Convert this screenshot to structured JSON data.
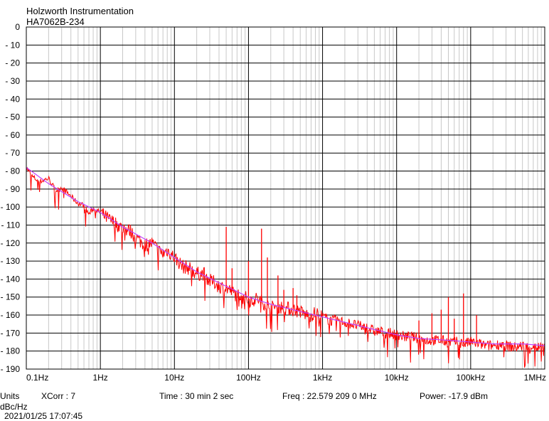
{
  "header": {
    "line1": "Holzworth Instrumentation",
    "line2": "HA7062B-234"
  },
  "footer": {
    "units_label": "Units",
    "units_value": "dBc/Hz",
    "xcorr": "XCorr : 7",
    "time": "Time : 30 min 2 sec",
    "freq": "Freq : 22.579 209 0 MHz",
    "power": "Power: -17.9 dBm",
    "timestamp": "2021/01/25 17:07:45"
  },
  "colors": {
    "measured": "#ff0000",
    "smoothed": "#c040ff",
    "grid": "#c8c8c8",
    "axes": "#000000"
  },
  "chart_data": {
    "type": "line",
    "x_scale": "log",
    "xlim": [
      0.1,
      1000000
    ],
    "ylim": [
      -190,
      0
    ],
    "yticks": [
      0,
      -10,
      -20,
      -30,
      -40,
      -50,
      -60,
      -70,
      -80,
      -90,
      -100,
      -110,
      -120,
      -130,
      -140,
      -150,
      -160,
      -170,
      -180,
      -190
    ],
    "xticks": [
      {
        "value": 0.1,
        "label": "0.1Hz"
      },
      {
        "value": 1,
        "label": "1Hz"
      },
      {
        "value": 10,
        "label": "10Hz"
      },
      {
        "value": 100,
        "label": "100Hz"
      },
      {
        "value": 1000,
        "label": "1kHz"
      },
      {
        "value": 10000,
        "label": "10kHz"
      },
      {
        "value": 100000,
        "label": "100kHz"
      },
      {
        "value": 1000000,
        "label": "1MHz"
      }
    ],
    "series": [
      {
        "kind": "measured",
        "points": [
          [
            0.1,
            -78
          ],
          [
            0.12,
            -83
          ],
          [
            0.15,
            -86
          ],
          [
            0.2,
            -84
          ],
          [
            0.25,
            -91
          ],
          [
            0.3,
            -89
          ],
          [
            0.4,
            -94
          ],
          [
            0.5,
            -98
          ],
          [
            0.6,
            -99
          ],
          [
            0.7,
            -104
          ],
          [
            0.8,
            -101
          ],
          [
            1,
            -103
          ],
          [
            1.3,
            -107
          ],
          [
            1.6,
            -109
          ],
          [
            2,
            -112
          ],
          [
            2.5,
            -113
          ],
          [
            3,
            -117
          ],
          [
            3.5,
            -119
          ],
          [
            4,
            -121
          ],
          [
            5,
            -120
          ],
          [
            6,
            -124
          ],
          [
            7,
            -126
          ],
          [
            8,
            -124
          ],
          [
            10,
            -128
          ],
          [
            13,
            -133
          ],
          [
            16,
            -134
          ],
          [
            20,
            -137
          ],
          [
            25,
            -137
          ],
          [
            30,
            -141
          ],
          [
            35,
            -142
          ],
          [
            40,
            -144
          ],
          [
            50,
            -145
          ],
          [
            60,
            -147
          ],
          [
            70,
            -149
          ],
          [
            80,
            -148
          ],
          [
            100,
            -152
          ],
          [
            130,
            -151
          ],
          [
            160,
            -153
          ],
          [
            200,
            -156
          ],
          [
            250,
            -155
          ],
          [
            300,
            -156
          ],
          [
            400,
            -157
          ],
          [
            500,
            -158
          ],
          [
            600,
            -160
          ],
          [
            700,
            -160
          ],
          [
            800,
            -159
          ],
          [
            1000,
            -161
          ],
          [
            1300,
            -163
          ],
          [
            1600,
            -163
          ],
          [
            2000,
            -164
          ],
          [
            2500,
            -165
          ],
          [
            3000,
            -166
          ],
          [
            4000,
            -167
          ],
          [
            5000,
            -169
          ],
          [
            6000,
            -169
          ],
          [
            7000,
            -170
          ],
          [
            8000,
            -170
          ],
          [
            10000,
            -171
          ],
          [
            13000,
            -172
          ],
          [
            16000,
            -172
          ],
          [
            20000,
            -173
          ],
          [
            25000,
            -174
          ],
          [
            30000,
            -174
          ],
          [
            40000,
            -174
          ],
          [
            50000,
            -175
          ],
          [
            60000,
            -175
          ],
          [
            70000,
            -175
          ],
          [
            80000,
            -176
          ],
          [
            100000,
            -175
          ],
          [
            130000,
            -176
          ],
          [
            160000,
            -177
          ],
          [
            200000,
            -177
          ],
          [
            250000,
            -176
          ],
          [
            300000,
            -177
          ],
          [
            400000,
            -178
          ],
          [
            500000,
            -177
          ],
          [
            600000,
            -178
          ],
          [
            700000,
            -177
          ],
          [
            800000,
            -178
          ],
          [
            1000000,
            -177
          ]
        ],
        "spurs": [
          [
            50,
            -111
          ],
          [
            60,
            -134
          ],
          [
            100,
            -130
          ],
          [
            150,
            -112
          ],
          [
            180,
            -128
          ],
          [
            250,
            -138
          ],
          [
            300,
            -146
          ],
          [
            400,
            -145
          ],
          [
            450,
            -149
          ],
          [
            20000,
            -163
          ],
          [
            30000,
            -159
          ],
          [
            40000,
            -157
          ],
          [
            50000,
            -150
          ],
          [
            60000,
            -162
          ],
          [
            80000,
            -148
          ],
          [
            120000,
            -160
          ]
        ]
      },
      {
        "kind": "smoothed",
        "points": [
          [
            0.1,
            -78
          ],
          [
            0.2,
            -87
          ],
          [
            0.5,
            -97
          ],
          [
            1,
            -103
          ],
          [
            2,
            -111
          ],
          [
            5,
            -120
          ],
          [
            10,
            -128
          ],
          [
            20,
            -136
          ],
          [
            50,
            -144
          ],
          [
            100,
            -150
          ],
          [
            200,
            -154
          ],
          [
            500,
            -158
          ],
          [
            1000,
            -161
          ],
          [
            2000,
            -164
          ],
          [
            5000,
            -168
          ],
          [
            10000,
            -171
          ],
          [
            20000,
            -173
          ],
          [
            50000,
            -174
          ],
          [
            100000,
            -175
          ],
          [
            200000,
            -176
          ],
          [
            500000,
            -176
          ],
          [
            1000000,
            -177
          ]
        ]
      }
    ]
  }
}
